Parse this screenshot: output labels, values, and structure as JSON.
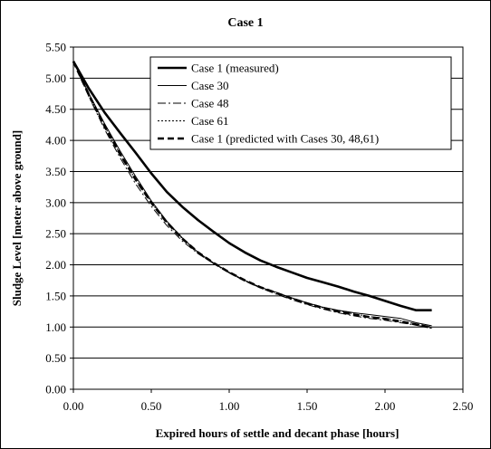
{
  "chart_data": {
    "type": "line",
    "title": "Case 1",
    "xlabel": "Expired hours of settle and decant phase [hours]",
    "ylabel": "Sludge Level [meter above ground]",
    "xlim": [
      0,
      2.5
    ],
    "ylim": [
      0,
      5.5
    ],
    "x_ticks": [
      "0.00",
      "0.50",
      "1.00",
      "1.50",
      "2.00",
      "2.50"
    ],
    "y_ticks": [
      "0.00",
      "0.50",
      "1.00",
      "1.50",
      "2.00",
      "2.50",
      "3.00",
      "3.50",
      "4.00",
      "4.50",
      "5.00",
      "5.50"
    ],
    "grid": "horizontal",
    "legend_position": "top-right",
    "series": [
      {
        "name": "Case 1 (measured)",
        "style": "solid-thick",
        "x": [
          0.0,
          0.1,
          0.2,
          0.3,
          0.4,
          0.5,
          0.6,
          0.7,
          0.8,
          0.9,
          1.0,
          1.1,
          1.2,
          1.3,
          1.4,
          1.5,
          1.6,
          1.7,
          1.8,
          1.9,
          2.0,
          2.1,
          2.2,
          2.3
        ],
        "y": [
          5.27,
          4.83,
          4.45,
          4.12,
          3.8,
          3.47,
          3.17,
          2.93,
          2.72,
          2.53,
          2.35,
          2.2,
          2.07,
          1.97,
          1.88,
          1.79,
          1.72,
          1.65,
          1.57,
          1.5,
          1.42,
          1.34,
          1.27,
          1.27
        ]
      },
      {
        "name": "Case 30",
        "style": "solid-thin",
        "x": [
          0.0,
          0.1,
          0.2,
          0.3,
          0.4,
          0.5,
          0.6,
          0.7,
          0.8,
          0.9,
          1.0,
          1.1,
          1.2,
          1.3,
          1.4,
          1.5,
          1.6,
          1.7,
          1.8,
          1.9,
          2.0,
          2.1,
          2.2,
          2.3
        ],
        "y": [
          5.27,
          4.75,
          4.27,
          3.83,
          3.42,
          3.03,
          2.7,
          2.43,
          2.2,
          2.03,
          1.88,
          1.75,
          1.64,
          1.56,
          1.47,
          1.39,
          1.32,
          1.27,
          1.23,
          1.2,
          1.17,
          1.14,
          1.07,
          1.02
        ]
      },
      {
        "name": "Case 48",
        "style": "dash-dot",
        "x": [
          0.0,
          0.1,
          0.2,
          0.3,
          0.4,
          0.5,
          0.6,
          0.7,
          0.8,
          0.9,
          1.0,
          1.1,
          1.2,
          1.3,
          1.4,
          1.5,
          1.6,
          1.7,
          1.8,
          1.9,
          2.0,
          2.1,
          2.2,
          2.3
        ],
        "y": [
          5.27,
          4.7,
          4.18,
          3.72,
          3.3,
          2.94,
          2.63,
          2.38,
          2.18,
          2.02,
          1.87,
          1.74,
          1.63,
          1.53,
          1.44,
          1.36,
          1.29,
          1.23,
          1.18,
          1.14,
          1.11,
          1.07,
          1.03,
          0.98
        ]
      },
      {
        "name": "Case 61",
        "style": "dotted",
        "x": [
          0.0,
          0.1,
          0.2,
          0.3,
          0.4,
          0.5,
          0.6,
          0.7,
          0.8,
          0.9,
          1.0,
          1.1,
          1.2,
          1.3,
          1.4,
          1.5,
          1.6,
          1.7,
          1.8,
          1.9,
          2.0,
          2.1,
          2.2,
          2.3
        ],
        "y": [
          5.27,
          4.73,
          4.23,
          3.78,
          3.37,
          3.0,
          2.68,
          2.42,
          2.2,
          2.03,
          1.88,
          1.75,
          1.64,
          1.55,
          1.46,
          1.38,
          1.31,
          1.26,
          1.21,
          1.17,
          1.14,
          1.1,
          1.05,
          1.0
        ]
      },
      {
        "name": "Case 1 (predicted with Cases 30, 48,61)",
        "style": "dashed-thick",
        "x": [
          0.0,
          0.1,
          0.2,
          0.3,
          0.4,
          0.5,
          0.6,
          0.7,
          0.8,
          0.9,
          1.0,
          1.1,
          1.2,
          1.3,
          1.4,
          1.5,
          1.6,
          1.7,
          1.8,
          1.9,
          2.0,
          2.1,
          2.2,
          2.3
        ],
        "y": [
          5.27,
          4.73,
          4.23,
          3.78,
          3.37,
          3.0,
          2.68,
          2.42,
          2.2,
          2.03,
          1.88,
          1.75,
          1.64,
          1.55,
          1.46,
          1.38,
          1.31,
          1.25,
          1.2,
          1.16,
          1.13,
          1.09,
          1.04,
          0.99
        ]
      }
    ]
  }
}
